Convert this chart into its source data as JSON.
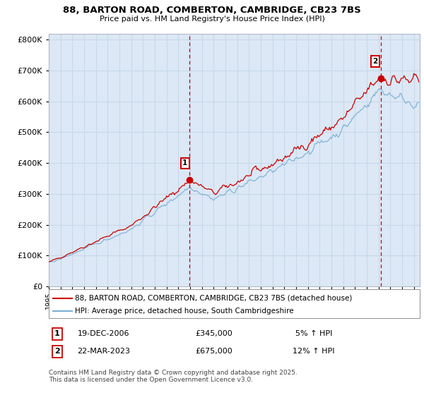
{
  "title_line1": "88, BARTON ROAD, COMBERTON, CAMBRIDGE, CB23 7BS",
  "title_line2": "Price paid vs. HM Land Registry's House Price Index (HPI)",
  "ytick_values": [
    0,
    100000,
    200000,
    300000,
    400000,
    500000,
    600000,
    700000,
    800000
  ],
  "ylim": [
    0,
    820000
  ],
  "xlim_start": 1995.0,
  "xlim_end": 2026.5,
  "sale1_year": 2006.97,
  "sale1_price": 345000,
  "sale1_label": "1",
  "sale2_year": 2023.22,
  "sale2_price": 675000,
  "sale2_label": "2",
  "hpi_color": "#7bafd4",
  "price_color": "#cc0000",
  "vline_color": "#cc0000",
  "grid_color": "#c8d8ea",
  "background_color": "#dce8f5",
  "legend_label1": "88, BARTON ROAD, COMBERTON, CAMBRIDGE, CB23 7BS (detached house)",
  "legend_label2": "HPI: Average price, detached house, South Cambridgeshire",
  "annotation1_date": "19-DEC-2006",
  "annotation1_price": "£345,000",
  "annotation1_hpi": "5% ↑ HPI",
  "annotation2_date": "22-MAR-2023",
  "annotation2_price": "£675,000",
  "annotation2_hpi": "12% ↑ HPI",
  "footnote": "Contains HM Land Registry data © Crown copyright and database right 2025.\nThis data is licensed under the Open Government Licence v3.0."
}
